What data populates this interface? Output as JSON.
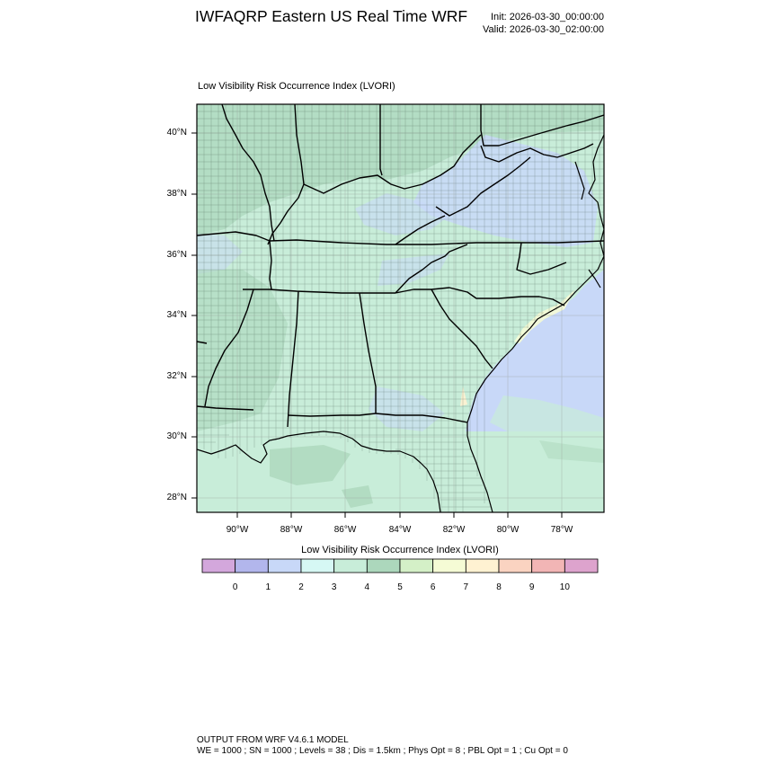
{
  "header": {
    "title": "IWFAQRP Eastern US Real Time WRF",
    "init": "Init: 2026-03-30_00:00:00",
    "valid": "Valid: 2026-03-30_02:00:00"
  },
  "map": {
    "title": "Low Visibility Risk Occurrence Index   (LVORI)",
    "region": "Southeastern United States",
    "latitude_labels": [
      "40°N",
      "38°N",
      "36°N",
      "34°N",
      "32°N",
      "30°N",
      "28°N"
    ],
    "longitude_labels": [
      "90°W",
      "88°W",
      "86°W",
      "84°W",
      "82°W",
      "80°W",
      "78°W"
    ],
    "lat_range": [
      27.5,
      41.0
    ],
    "lon_range": [
      -91.6,
      -76.5
    ],
    "dominant_index_over_land": 4,
    "index_over_atlantic": 2,
    "index_over_gulf": 4
  },
  "colorbar": {
    "title": "Low Visibility Risk Occurrence Index  (LVORI)",
    "colors": [
      "#d3a7dc",
      "#b2b6ec",
      "#c8d8f8",
      "#d6f8f4",
      "#c8edd9",
      "#acd7bc",
      "#d4f0c7",
      "#f5fbd5",
      "#fff2d2",
      "#fad3c1",
      "#f2b5b5",
      "#dda3cd"
    ],
    "labels": [
      "0",
      "1",
      "2",
      "3",
      "4",
      "5",
      "6",
      "7",
      "8",
      "9",
      "10"
    ]
  },
  "footer": {
    "line1": "OUTPUT FROM WRF V4.6.1 MODEL",
    "line2": "WE = 1000 ; SN = 1000 ; Levels = 38 ; Dis = 1.5km ; Phys Opt = 8 ; PBL Opt = 1 ; Cu Opt = 0"
  }
}
